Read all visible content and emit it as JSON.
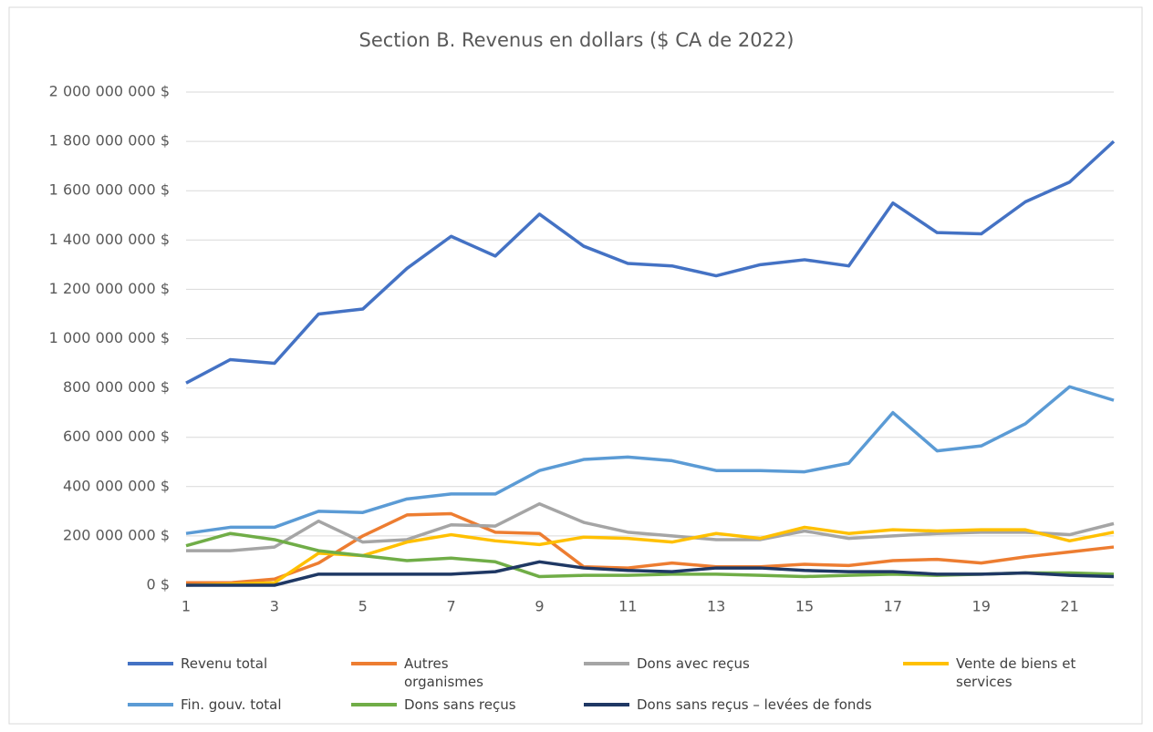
{
  "chart_data": {
    "type": "line",
    "title": "Section B. Revenus en dollars ($ CA de 2022)",
    "x": [
      1,
      2,
      3,
      4,
      5,
      6,
      7,
      8,
      9,
      10,
      11,
      12,
      13,
      14,
      15,
      16,
      17,
      18,
      19,
      20,
      21,
      22
    ],
    "xlim": [
      1,
      22
    ],
    "xticks": [
      1,
      3,
      5,
      7,
      9,
      11,
      13,
      15,
      17,
      19,
      21
    ],
    "ylim": [
      0,
      2000000000
    ],
    "yticks": [
      {
        "value": 0,
        "label": "0 $"
      },
      {
        "value": 200000000,
        "label": "200 000 000 $"
      },
      {
        "value": 400000000,
        "label": "400 000 000 $"
      },
      {
        "value": 600000000,
        "label": "600 000 000 $"
      },
      {
        "value": 800000000,
        "label": "800 000 000 $"
      },
      {
        "value": 1000000000,
        "label": "1 000 000 000 $"
      },
      {
        "value": 1200000000,
        "label": "1 200 000 000 $"
      },
      {
        "value": 1400000000,
        "label": "1 400 000 000 $"
      },
      {
        "value": 1600000000,
        "label": "1 600 000 000 $"
      },
      {
        "value": 1800000000,
        "label": "1 800 000 000 $"
      },
      {
        "value": 2000000000,
        "label": "2 000 000 000 $"
      }
    ],
    "grid": true,
    "legend": "bottom",
    "series": [
      {
        "name": "Revenu total",
        "color": "#4472c4",
        "values": [
          820000000,
          915000000,
          900000000,
          1100000000,
          1120000000,
          1285000000,
          1415000000,
          1335000000,
          1505000000,
          1375000000,
          1305000000,
          1295000000,
          1255000000,
          1300000000,
          1320000000,
          1295000000,
          1550000000,
          1430000000,
          1425000000,
          1555000000,
          1635000000,
          1800000000
        ]
      },
      {
        "name": "Autres organismes",
        "color": "#ed7d31",
        "values": [
          10000000,
          10000000,
          25000000,
          90000000,
          200000000,
          285000000,
          290000000,
          215000000,
          210000000,
          75000000,
          70000000,
          90000000,
          75000000,
          75000000,
          85000000,
          80000000,
          100000000,
          105000000,
          90000000,
          115000000,
          135000000,
          155000000
        ]
      },
      {
        "name": "Dons avec reçus",
        "color": "#a5a5a5",
        "values": [
          140000000,
          140000000,
          155000000,
          260000000,
          175000000,
          185000000,
          245000000,
          240000000,
          330000000,
          255000000,
          215000000,
          200000000,
          185000000,
          185000000,
          220000000,
          190000000,
          200000000,
          210000000,
          215000000,
          215000000,
          205000000,
          250000000
        ]
      },
      {
        "name": "Vente de biens et services",
        "color": "#ffc000",
        "values": [
          0,
          5000000,
          10000000,
          130000000,
          120000000,
          175000000,
          205000000,
          180000000,
          165000000,
          195000000,
          190000000,
          175000000,
          210000000,
          190000000,
          235000000,
          210000000,
          225000000,
          220000000,
          225000000,
          225000000,
          180000000,
          215000000
        ]
      },
      {
        "name": "Fin. gouv. total",
        "color": "#5b9bd5",
        "values": [
          210000000,
          235000000,
          235000000,
          300000000,
          295000000,
          350000000,
          370000000,
          370000000,
          465000000,
          510000000,
          520000000,
          505000000,
          465000000,
          465000000,
          460000000,
          495000000,
          700000000,
          545000000,
          565000000,
          655000000,
          805000000,
          750000000
        ]
      },
      {
        "name": "Dons sans reçus",
        "color": "#70ad47",
        "values": [
          160000000,
          210000000,
          185000000,
          140000000,
          120000000,
          100000000,
          110000000,
          95000000,
          35000000,
          40000000,
          40000000,
          45000000,
          45000000,
          40000000,
          35000000,
          40000000,
          45000000,
          40000000,
          45000000,
          50000000,
          50000000,
          45000000
        ]
      },
      {
        "name": "Dons sans reçus – levées de fonds",
        "color": "#1f3864",
        "values": [
          0,
          0,
          0,
          45000000,
          45000000,
          45000000,
          45000000,
          55000000,
          95000000,
          70000000,
          60000000,
          55000000,
          70000000,
          70000000,
          60000000,
          55000000,
          55000000,
          45000000,
          45000000,
          50000000,
          40000000,
          35000000
        ]
      }
    ]
  }
}
